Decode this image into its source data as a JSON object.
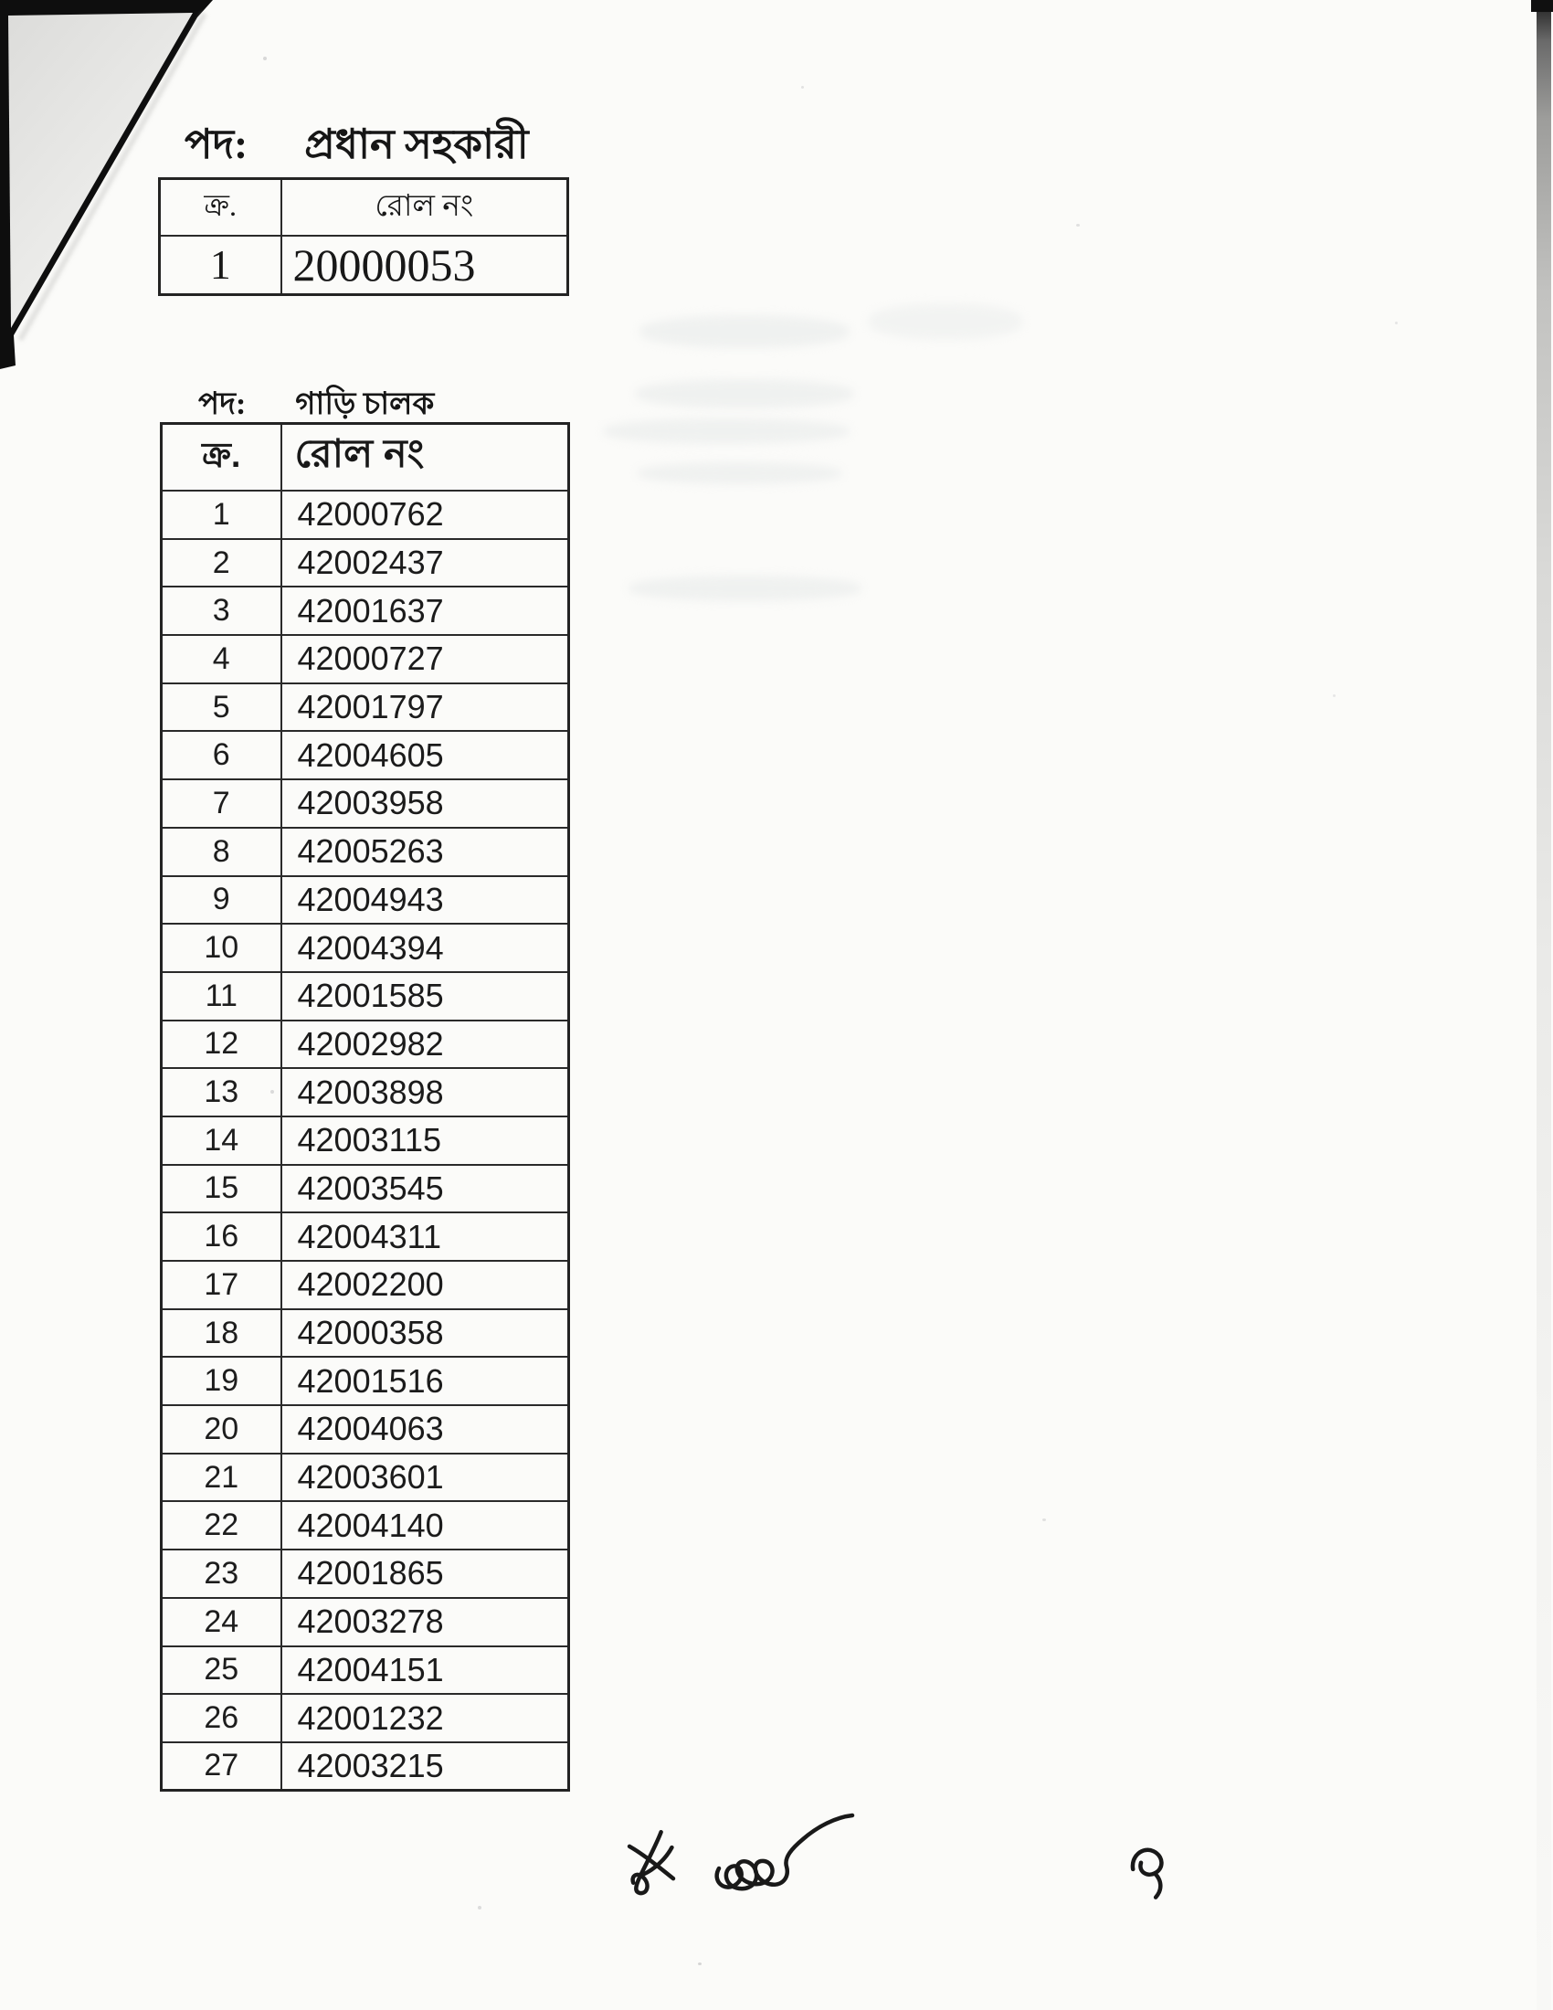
{
  "document": {
    "colors": {
      "page_bg": "#fbfbf9",
      "ink": "#1b1b1b",
      "table_border": "#2a2a2a",
      "fold_black": "#0e0e0e",
      "fold_gray": "#e3e3e1"
    },
    "sections": [
      {
        "position_label": "পদ:",
        "position_title": "প্রধান সহকারী",
        "table": {
          "headers": {
            "serial": "ক্র.",
            "roll": "রোল নং"
          },
          "rows": [
            [
              "1",
              "20000053"
            ]
          ]
        }
      },
      {
        "position_label": "পদ:",
        "position_title": "গাড়ি চালক",
        "table": {
          "headers": {
            "serial": "ক্র.",
            "roll": "রোল নং"
          },
          "rows": [
            [
              "1",
              "42000762"
            ],
            [
              "2",
              "42002437"
            ],
            [
              "3",
              "42001637"
            ],
            [
              "4",
              "42000727"
            ],
            [
              "5",
              "42001797"
            ],
            [
              "6",
              "42004605"
            ],
            [
              "7",
              "42003958"
            ],
            [
              "8",
              "42005263"
            ],
            [
              "9",
              "42004943"
            ],
            [
              "10",
              "42004394"
            ],
            [
              "11",
              "42001585"
            ],
            [
              "12",
              "42002982"
            ],
            [
              "13",
              "42003898"
            ],
            [
              "14",
              "42003115"
            ],
            [
              "15",
              "42003545"
            ],
            [
              "16",
              "42004311"
            ],
            [
              "17",
              "42002200"
            ],
            [
              "18",
              "42000358"
            ],
            [
              "19",
              "42001516"
            ],
            [
              "20",
              "42004063"
            ],
            [
              "21",
              "42003601"
            ],
            [
              "22",
              "42004140"
            ],
            [
              "23",
              "42001865"
            ],
            [
              "24",
              "42003278"
            ],
            [
              "25",
              "42004151"
            ],
            [
              "26",
              "42001232"
            ],
            [
              "27",
              "42003215"
            ]
          ]
        }
      }
    ]
  }
}
